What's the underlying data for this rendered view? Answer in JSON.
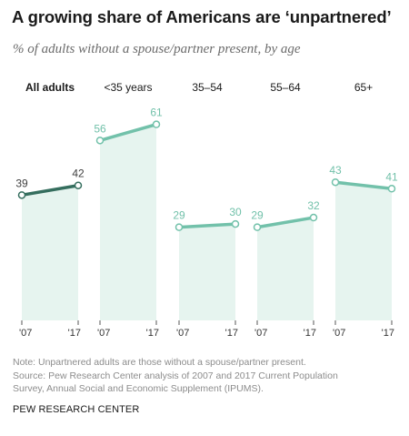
{
  "title": "A growing share of Americans are ‘unpartnered’",
  "subtitle": "% of adults without a spouse/partner present, by age",
  "chart_data": {
    "type": "line",
    "x": [
      "'07",
      "'17"
    ],
    "ylim": [
      0,
      70
    ],
    "grid": false,
    "panels": [
      {
        "label": "All adults",
        "values": [
          39,
          42
        ],
        "highlight": true
      },
      {
        "label": "<35 years",
        "values": [
          56,
          61
        ],
        "highlight": false
      },
      {
        "label": "35–54",
        "values": [
          29,
          30
        ],
        "highlight": false
      },
      {
        "label": "55–64",
        "values": [
          29,
          32
        ],
        "highlight": false
      },
      {
        "label": "65+",
        "values": [
          43,
          41
        ],
        "highlight": false
      }
    ]
  },
  "colors": {
    "highlight_line": "#356e5e",
    "line": "#72c1aa",
    "area": "#e6f4ef",
    "label_highlight": "#3f3f3f",
    "label": "#72c1aa"
  },
  "notes": {
    "note": "Note: Unpartnered adults are those without a spouse/partner present.",
    "source_1": "Source: Pew Research Center analysis of 2007 and 2017 Current Population",
    "source_2": "Survey, Annual Social and Economic Supplement (IPUMS)."
  },
  "footer": "PEW RESEARCH CENTER"
}
